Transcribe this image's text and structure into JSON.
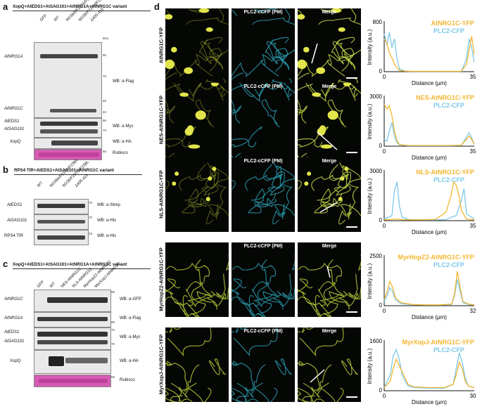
{
  "panel_a": {
    "label": "a",
    "header": "XopQ+AtEDS1+AtSAG101+AtNRG1A+AtNRG1C variant",
    "lanes": [
      "GFP",
      "WT",
      "W236A/F237A/F238A",
      "W236/F237M/F238L",
      "Δ405-415"
    ],
    "kda": "kDa",
    "markers": [
      "95",
      "70",
      "55",
      "43",
      "95",
      "70",
      "55"
    ],
    "blots": [
      {
        "labels": [
          "AtNRG1A",
          "AtNRG1C"
        ],
        "wb": "WB: α-Flag"
      },
      {
        "labels": [
          "AtEDS1",
          "AtSAG101"
        ],
        "wb": "WB: α-Myc"
      },
      {
        "labels": [
          "XopQ"
        ],
        "wb": "WB: α-HA"
      },
      {
        "labels": [
          ""
        ],
        "wb": "Rubisco"
      }
    ]
  },
  "panel_b": {
    "label": "b",
    "header": "RPS4 TIR+AtEDS1+AtSAG101+AtNRG1C variant",
    "lanes": [
      "WT",
      "W236A/F237A/F238A",
      "W236/F237M/F238L",
      "Δ405-415"
    ],
    "markers": [
      "70",
      "70",
      "33"
    ],
    "blots": [
      {
        "labels": [
          "AtEDS1"
        ],
        "wb": "WB: α-Strep"
      },
      {
        "labels": [
          "AtSAG101"
        ],
        "wb": "WB: α-His"
      },
      {
        "labels": [
          "RPS4 TIR"
        ],
        "wb": "WB: α-His"
      }
    ]
  },
  "panel_c": {
    "label": "c",
    "header": "XopQ+AtEDS1+AtSAG101+AtNRG1A+AtNRG1C variant",
    "lanes": [
      "GFP",
      "WT",
      "NES-AtNRG1C",
      "NLS-AtNRG1C",
      "MyrHopZ2-AtNRG1C",
      "MyrXopJ-AtNRG1C"
    ],
    "markers": [
      "95",
      "95",
      "70",
      "70",
      "55"
    ],
    "blots": [
      {
        "labels": [
          "AtNRG1C"
        ],
        "wb": "WB: α-GFP"
      },
      {
        "labels": [
          "AtNRG1A"
        ],
        "wb": "WB: α-Flag"
      },
      {
        "labels": [
          "AtEDS1",
          "AtSAG101"
        ],
        "wb": "WB: α-Myc"
      },
      {
        "labels": [
          "XopQ"
        ],
        "wb": "WB: α-HA"
      },
      {
        "labels": [
          ""
        ],
        "wb": "Rubisco"
      }
    ]
  },
  "panel_d": {
    "label": "d",
    "col_titles": [
      "",
      "PLC2-cCFP (PM)",
      "Merge"
    ],
    "rows": [
      {
        "construct": "AtNRG1C-YFP",
        "legend_top": "AtNRG1C-YFP",
        "legend_bottom": "PLC2-CFP",
        "ymax": "800",
        "xmax": "35"
      },
      {
        "construct": "NES-AtNRG1C-YFP",
        "legend_top": "NES-AtNRG1C-YFP",
        "legend_bottom": "PLC2-CFP",
        "ymax": "3000",
        "xmax": "35"
      },
      {
        "construct": "NLS-AtNRG1C-YFP",
        "legend_top": "NLS-AtNRG1C-YFP",
        "legend_bottom": "PLC2-CFP",
        "ymax": "3000",
        "xmax": "35"
      },
      {
        "construct": "MyrHopZ2-AtNRG1C-YFP",
        "legend_top": "MyrHopZ2-AtNRG1C-YFP",
        "legend_bottom": "PLC2-CFP",
        "ymax": "2500",
        "xmax": "32"
      },
      {
        "construct": "MyrXopJ-AtNRG1C-YFP",
        "legend_top": "MyrXopJ-AtNRG1C-YFP",
        "legend_bottom": "PLC2-CFP",
        "ymax": "1600",
        "xmax": "30"
      }
    ],
    "ylabel": "Intensity (a.u.)",
    "xlabel": "Distance (μm)",
    "xmin": "0",
    "ymin": "0",
    "colors": {
      "yfp": "#f2b630",
      "cfp": "#7cc8e8"
    }
  },
  "chart_data": [
    {
      "type": "line",
      "title": "",
      "xlabel": "Distance (μm)",
      "ylabel": "Intensity (a.u.)",
      "xlim": [
        0,
        35
      ],
      "ylim": [
        0,
        800
      ],
      "series": [
        {
          "name": "AtNRG1C-YFP",
          "x": [
            0,
            1,
            2,
            3,
            4,
            5,
            6,
            8,
            10,
            15,
            20,
            25,
            30,
            32,
            33,
            34,
            35
          ],
          "y": [
            520,
            460,
            300,
            220,
            120,
            60,
            20,
            10,
            5,
            5,
            5,
            5,
            5,
            120,
            350,
            560,
            280
          ]
        },
        {
          "name": "PLC2-CFP",
          "x": [
            0,
            1,
            2,
            3,
            4,
            5,
            6,
            8,
            10,
            15,
            20,
            25,
            30,
            32,
            33,
            34,
            35
          ],
          "y": [
            600,
            420,
            620,
            380,
            520,
            200,
            40,
            10,
            5,
            5,
            5,
            5,
            5,
            200,
            520,
            380,
            150
          ]
        }
      ]
    },
    {
      "type": "line",
      "title": "",
      "xlabel": "Distance (μm)",
      "ylabel": "Intensity (a.u.)",
      "xlim": [
        0,
        35
      ],
      "ylim": [
        0,
        3000
      ],
      "series": [
        {
          "name": "NES-AtNRG1C-YFP",
          "x": [
            0,
            1,
            2,
            3,
            4,
            5,
            6,
            8,
            10,
            15,
            20,
            25,
            30,
            33,
            34,
            35
          ],
          "y": [
            2500,
            2200,
            2400,
            1800,
            900,
            300,
            100,
            60,
            40,
            40,
            40,
            40,
            60,
            600,
            400,
            100
          ]
        },
        {
          "name": "PLC2-CFP",
          "x": [
            0,
            1,
            2,
            3,
            4,
            5,
            6,
            8,
            10,
            15,
            20,
            25,
            30,
            33,
            34,
            35
          ],
          "y": [
            400,
            300,
            900,
            1400,
            600,
            200,
            80,
            40,
            30,
            30,
            30,
            30,
            40,
            800,
            500,
            100
          ]
        }
      ]
    },
    {
      "type": "line",
      "title": "",
      "xlabel": "Distance (μm)",
      "ylabel": "Intensity (a.u.)",
      "xlim": [
        0,
        35
      ],
      "ylim": [
        0,
        3000
      ],
      "series": [
        {
          "name": "NLS-AtNRG1C-YFP",
          "x": [
            0,
            3,
            5,
            7,
            10,
            15,
            20,
            24,
            26,
            27,
            28,
            29,
            30,
            32,
            35
          ],
          "y": [
            50,
            80,
            100,
            60,
            50,
            50,
            80,
            500,
            1500,
            2300,
            2100,
            1500,
            600,
            100,
            50
          ]
        },
        {
          "name": "PLC2-CFP",
          "x": [
            0,
            3,
            4,
            5,
            6,
            7,
            10,
            15,
            20,
            24,
            26,
            28,
            30,
            31,
            32,
            35
          ],
          "y": [
            100,
            300,
            1800,
            2300,
            800,
            200,
            50,
            40,
            40,
            60,
            200,
            300,
            1200,
            1900,
            400,
            100
          ]
        }
      ]
    },
    {
      "type": "line",
      "title": "",
      "xlabel": "Distance (μm)",
      "ylabel": "Intensity (a.u.)",
      "xlim": [
        0,
        32
      ],
      "ylim": [
        0,
        2500
      ],
      "series": [
        {
          "name": "MyrHopZ2-AtNRG1C-YFP",
          "x": [
            0,
            1,
            2,
            3,
            4,
            6,
            10,
            15,
            20,
            24,
            25,
            26,
            27,
            28,
            30,
            32
          ],
          "y": [
            300,
            700,
            1200,
            900,
            400,
            150,
            60,
            40,
            40,
            80,
            600,
            1700,
            900,
            200,
            80,
            40
          ]
        },
        {
          "name": "PLC2-CFP",
          "x": [
            0,
            1,
            2,
            3,
            4,
            6,
            10,
            15,
            20,
            24,
            25,
            26,
            27,
            28,
            30,
            32
          ],
          "y": [
            200,
            500,
            900,
            700,
            300,
            100,
            50,
            30,
            30,
            60,
            500,
            1300,
            700,
            150,
            60,
            30
          ]
        }
      ]
    },
    {
      "type": "line",
      "title": "",
      "xlabel": "Distance (μm)",
      "ylabel": "Intensity (a.u.)",
      "xlim": [
        0,
        30
      ],
      "ylim": [
        0,
        1600
      ],
      "series": [
        {
          "name": "MyrXopJ-AtNRG1C-YFP",
          "x": [
            0,
            2,
            3,
            4,
            5,
            6,
            7,
            8,
            10,
            15,
            20,
            23,
            24,
            25,
            26,
            27,
            28,
            30
          ],
          "y": [
            100,
            300,
            700,
            1000,
            800,
            600,
            400,
            200,
            120,
            100,
            100,
            200,
            500,
            900,
            700,
            300,
            150,
            100
          ]
        },
        {
          "name": "PLC2-CFP",
          "x": [
            0,
            2,
            3,
            4,
            5,
            6,
            7,
            8,
            10,
            15,
            20,
            23,
            24,
            25,
            26,
            27,
            28,
            30
          ],
          "y": [
            100,
            500,
            1100,
            1300,
            1000,
            500,
            300,
            150,
            100,
            80,
            80,
            200,
            700,
            1200,
            900,
            400,
            150,
            100
          ]
        }
      ]
    }
  ]
}
